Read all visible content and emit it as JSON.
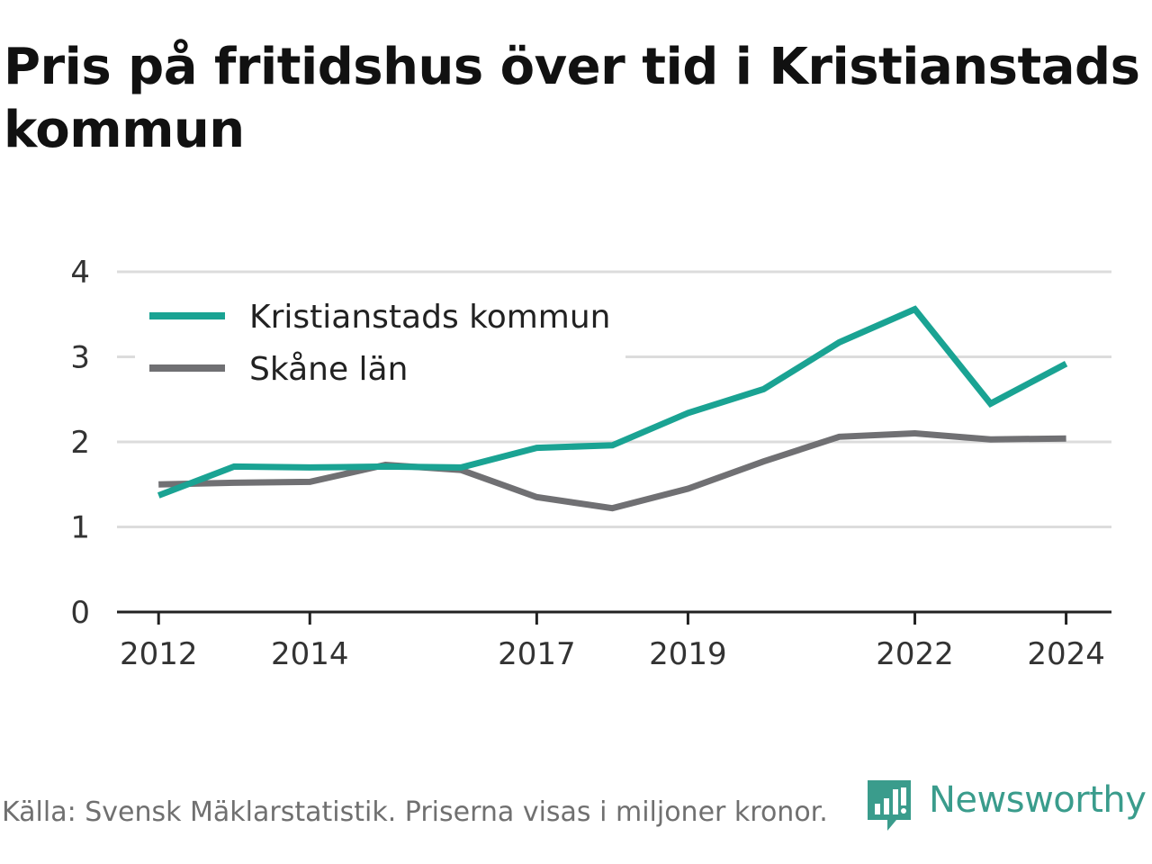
{
  "title": "Pris på fritidshus över tid i Kristianstads kommun",
  "footer": "Källa: Svensk Mäklarstatistik. Priserna visas i miljoner kronor.",
  "brand": "Newsworthy",
  "chart_data": {
    "type": "line",
    "title": "Pris på fritidshus över tid i Kristianstads kommun",
    "xlabel": "",
    "ylabel": "",
    "x": [
      2012,
      2013,
      2014,
      2015,
      2016,
      2017,
      2018,
      2019,
      2020,
      2021,
      2022,
      2023,
      2024
    ],
    "x_ticks": [
      "2012",
      "2014",
      "2017",
      "2019",
      "2022",
      "2024"
    ],
    "x_tick_values": [
      2012,
      2014,
      2017,
      2019,
      2022,
      2024
    ],
    "y_ticks": [
      "0",
      "1",
      "2",
      "3",
      "4"
    ],
    "y_tick_values": [
      0,
      1,
      2,
      3,
      4
    ],
    "ylim": [
      0,
      4
    ],
    "xlim": [
      2011.45,
      2024.6
    ],
    "grid": true,
    "legend_position": "top-left",
    "series": [
      {
        "name": "Kristianstads kommun",
        "color": "#1aa393",
        "values": [
          1.37,
          1.71,
          1.7,
          1.71,
          1.7,
          1.93,
          1.96,
          2.34,
          2.62,
          3.17,
          3.56,
          2.45,
          2.92
        ]
      },
      {
        "name": "Skåne län",
        "color": "#707073",
        "values": [
          1.5,
          1.52,
          1.53,
          1.73,
          1.67,
          1.35,
          1.22,
          1.45,
          1.77,
          2.06,
          2.1,
          2.03,
          2.04
        ]
      }
    ]
  }
}
